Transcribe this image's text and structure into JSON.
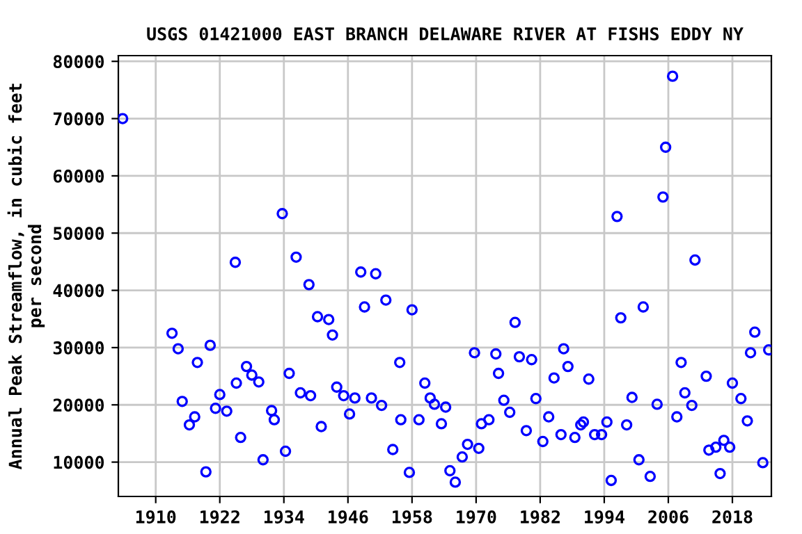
{
  "chart_data": {
    "type": "scatter",
    "title": "USGS 01421000 EAST BRANCH DELAWARE RIVER AT FISHS EDDY NY",
    "ylabel": "Annual Peak Streamflow, in cubic feet\nper second",
    "x": [
      1903.8,
      1913.05,
      1914.2,
      1914.96,
      1916.3,
      1917.3,
      1917.8,
      1919.4,
      1920.2,
      1921.2,
      1922.0,
      1923.3,
      1924.9,
      1925.1,
      1925.9,
      1927.0,
      1928.0,
      1929.3,
      1930.1,
      1931.7,
      1932.2,
      1933.7,
      1934.3,
      1935.0,
      1936.3,
      1937.1,
      1938.7,
      1939.0,
      1940.3,
      1941.0,
      1942.4,
      1943.1,
      1943.9,
      1945.2,
      1946.3,
      1947.3,
      1948.4,
      1949.1,
      1950.4,
      1951.2,
      1952.3,
      1953.1,
      1954.4,
      1955.7,
      1955.9,
      1957.5,
      1958.0,
      1959.3,
      1960.4,
      1961.4,
      1962.2,
      1963.5,
      1964.3,
      1965.1,
      1966.1,
      1967.4,
      1968.4,
      1969.7,
      1970.5,
      1971.0,
      1972.4,
      1973.7,
      1974.2,
      1975.2,
      1976.3,
      1977.3,
      1978.1,
      1979.4,
      1980.4,
      1981.2,
      1982.5,
      1983.6,
      1984.6,
      1985.9,
      1986.4,
      1987.2,
      1988.5,
      1989.6,
      1990.1,
      1991.1,
      1992.2,
      1993.5,
      1994.5,
      1995.3,
      1996.4,
      1997.1,
      1998.2,
      1999.2,
      2000.5,
      2001.3,
      2002.6,
      2003.9,
      2005.0,
      2005.5,
      2006.8,
      2007.6,
      2008.4,
      2009.1,
      2010.4,
      2011.0,
      2013.1,
      2013.6,
      2014.9,
      2015.7,
      2016.4,
      2017.5,
      2018.0,
      2019.6,
      2020.8,
      2021.4,
      2022.2,
      2023.7,
      2024.8
    ],
    "values": [
      70000,
      32500,
      29800,
      20600,
      16500,
      17900,
      27400,
      8300,
      30400,
      19400,
      21800,
      18900,
      44900,
      23800,
      14300,
      26700,
      25200,
      24000,
      10400,
      19000,
      17400,
      53400,
      11900,
      25500,
      45800,
      22100,
      41000,
      21600,
      35400,
      16200,
      34900,
      32200,
      23100,
      21600,
      18400,
      21200,
      43200,
      37100,
      21200,
      42900,
      19900,
      38300,
      12200,
      27400,
      17400,
      8200,
      36600,
      17400,
      23800,
      21200,
      20100,
      16700,
      19600,
      8500,
      6500,
      10900,
      13100,
      29100,
      12400,
      16700,
      17400,
      28900,
      25500,
      20800,
      18700,
      34400,
      28400,
      15500,
      27900,
      21100,
      13600,
      17900,
      24700,
      14800,
      29800,
      26700,
      14300,
      16500,
      17000,
      24500,
      14800,
      14800,
      17000,
      6800,
      52900,
      35200,
      16500,
      21300,
      10400,
      37100,
      7500,
      20100,
      56300,
      65000,
      77400,
      17900,
      27400,
      22100,
      19900,
      45300,
      25000,
      12100,
      12600,
      8000,
      13800,
      12600,
      23800,
      21100,
      17200,
      29100,
      32700,
      9900,
      29600
    ],
    "color": "#0000ff",
    "marker": "circle",
    "xlim": [
      1903,
      2025.3
    ],
    "ylim": [
      4000,
      81000
    ],
    "xticks": [
      1910,
      1922,
      1934,
      1946,
      1958,
      1970,
      1982,
      1994,
      2006,
      2018
    ],
    "yticks": [
      10000,
      20000,
      30000,
      40000,
      50000,
      60000,
      70000,
      80000
    ],
    "grid": true
  }
}
